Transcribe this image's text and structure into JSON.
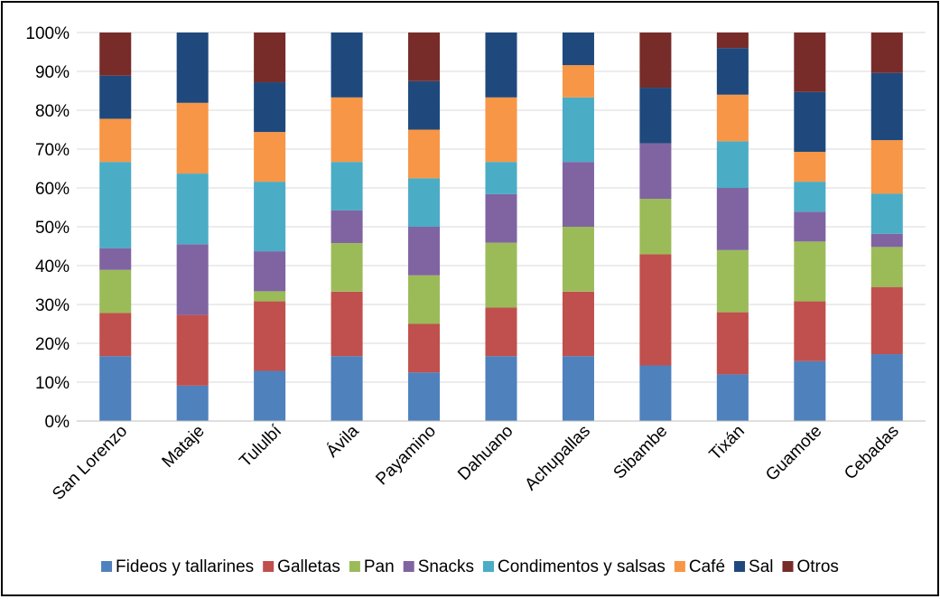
{
  "chart_data": {
    "type": "bar",
    "stacked": true,
    "normalized": true,
    "categories": [
      "San Lorenzo",
      "Mataje",
      "Tululbí",
      "Ávila",
      "Payamino",
      "Dahuano",
      "Achupallas",
      "Sibambe",
      "Tixán",
      "Guamote",
      "Cebadas"
    ],
    "y_ticks": [
      "0%",
      "10%",
      "20%",
      "30%",
      "40%",
      "50%",
      "60%",
      "70%",
      "80%",
      "90%",
      "100%"
    ],
    "ylim": [
      0,
      100
    ],
    "grid": true,
    "legend_position": "bottom",
    "series": [
      {
        "name": "Fideos y tallarines",
        "color": "#4F81BD",
        "values": [
          16.7,
          9.1,
          12.9,
          16.7,
          12.5,
          16.7,
          16.7,
          14.3,
          12.0,
          15.4,
          17.2
        ]
      },
      {
        "name": "Galletas",
        "color": "#C0504D",
        "values": [
          11.1,
          18.2,
          17.9,
          16.6,
          12.5,
          12.5,
          16.6,
          28.6,
          16.0,
          15.4,
          17.3
        ]
      },
      {
        "name": "Pan",
        "color": "#9BBB59",
        "values": [
          11.1,
          0,
          2.6,
          12.5,
          12.5,
          16.7,
          16.7,
          14.3,
          16.0,
          15.4,
          10.3
        ]
      },
      {
        "name": "Snacks",
        "color": "#8064A2",
        "values": [
          5.6,
          18.2,
          10.3,
          8.4,
          12.5,
          12.5,
          16.7,
          14.3,
          16.0,
          7.7,
          3.4
        ]
      },
      {
        "name": "Condimentos y salsas",
        "color": "#4BACC6",
        "values": [
          22.2,
          18.2,
          17.9,
          12.5,
          12.5,
          8.3,
          16.6,
          0,
          12.0,
          7.7,
          10.3
        ]
      },
      {
        "name": "Café",
        "color": "#F79646",
        "values": [
          11.1,
          18.2,
          12.8,
          16.6,
          12.5,
          16.6,
          8.3,
          0,
          12.0,
          7.7,
          13.8
        ]
      },
      {
        "name": "Sal",
        "color": "#1F497D",
        "values": [
          11.1,
          18.1,
          12.8,
          16.7,
          12.5,
          16.7,
          8.4,
          14.3,
          12.0,
          15.4,
          17.3
        ]
      },
      {
        "name": "Otros",
        "color": "#772C2A",
        "values": [
          11.1,
          0,
          12.8,
          0,
          12.5,
          0,
          0,
          14.2,
          4.0,
          15.3,
          10.4
        ]
      }
    ]
  }
}
